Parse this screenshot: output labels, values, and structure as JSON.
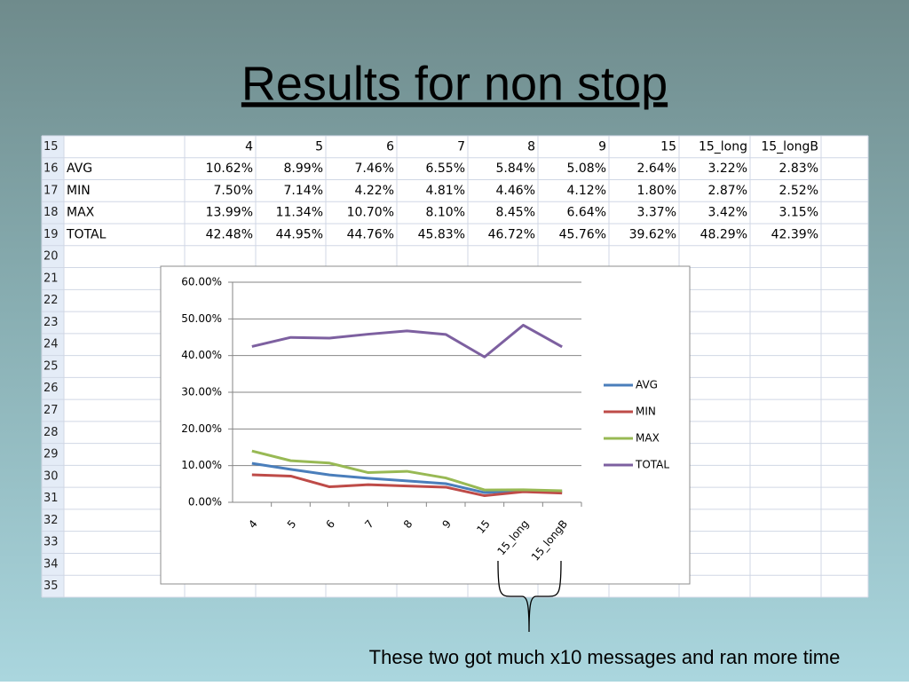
{
  "title": "Results for non stop",
  "spreadsheet": {
    "row_numbers": [
      "15",
      "16",
      "17",
      "18",
      "19",
      "20",
      "21",
      "22",
      "23",
      "24",
      "25",
      "26",
      "27",
      "28",
      "29",
      "30",
      "31",
      "32",
      "33",
      "34",
      "35"
    ],
    "header": [
      "4",
      "5",
      "6",
      "7",
      "8",
      "9",
      "15",
      "15_long",
      "15_longB"
    ],
    "rows": [
      {
        "label": "AVG",
        "cells": [
          "10.62%",
          "8.99%",
          "7.46%",
          "6.55%",
          "5.84%",
          "5.08%",
          "2.64%",
          "3.22%",
          "2.83%"
        ]
      },
      {
        "label": "MIN",
        "cells": [
          "7.50%",
          "7.14%",
          "4.22%",
          "4.81%",
          "4.46%",
          "4.12%",
          "1.80%",
          "2.87%",
          "2.52%"
        ]
      },
      {
        "label": "MAX",
        "cells": [
          "13.99%",
          "11.34%",
          "10.70%",
          "8.10%",
          "8.45%",
          "6.64%",
          "3.37%",
          "3.42%",
          "3.15%"
        ]
      },
      {
        "label": "TOTAL",
        "cells": [
          "42.48%",
          "44.95%",
          "44.76%",
          "45.83%",
          "46.72%",
          "45.76%",
          "39.62%",
          "48.29%",
          "42.39%"
        ]
      }
    ]
  },
  "chart_data": {
    "type": "line",
    "categories": [
      "4",
      "5",
      "6",
      "7",
      "8",
      "9",
      "15",
      "15_long",
      "15_longB"
    ],
    "series": [
      {
        "name": "AVG",
        "color": "#4a7ebb",
        "values": [
          10.62,
          8.99,
          7.46,
          6.55,
          5.84,
          5.08,
          2.64,
          3.22,
          2.83
        ]
      },
      {
        "name": "MIN",
        "color": "#be4b48",
        "values": [
          7.5,
          7.14,
          4.22,
          4.81,
          4.46,
          4.12,
          1.8,
          2.87,
          2.52
        ]
      },
      {
        "name": "MAX",
        "color": "#98b954",
        "values": [
          13.99,
          11.34,
          10.7,
          8.1,
          8.45,
          6.64,
          3.37,
          3.42,
          3.15
        ]
      },
      {
        "name": "TOTAL",
        "color": "#7d60a0",
        "values": [
          42.48,
          44.95,
          44.76,
          45.83,
          46.72,
          45.76,
          39.62,
          48.29,
          42.39
        ]
      }
    ],
    "ylim": [
      0,
      60
    ],
    "yticks": [
      {
        "value": 0,
        "label": "0.00%"
      },
      {
        "value": 10,
        "label": "10.00%"
      },
      {
        "value": 20,
        "label": "20.00%"
      },
      {
        "value": 30,
        "label": "30.00%"
      },
      {
        "value": 40,
        "label": "40.00%"
      },
      {
        "value": 50,
        "label": "50.00%"
      },
      {
        "value": 60,
        "label": "60.00%"
      }
    ],
    "grid": true,
    "legend": "right"
  },
  "annotation": "These two got much x10 messages and ran more time"
}
